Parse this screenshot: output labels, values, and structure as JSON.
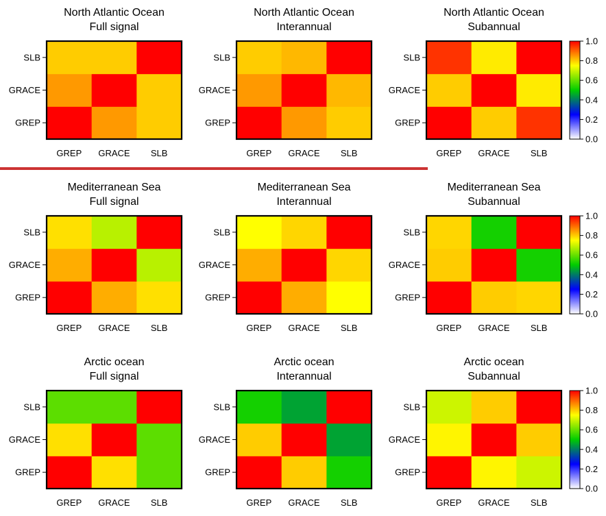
{
  "chart_data": [
    {
      "type": "heatmap",
      "title": "North Atlantic Ocean",
      "subtitle": "Full signal",
      "x_labels": [
        "GREP",
        "GRACE",
        "SLB"
      ],
      "y_labels": [
        "GREP",
        "GRACE",
        "SLB"
      ],
      "values": [
        [
          1.0,
          0.85,
          0.8
        ],
        [
          0.85,
          1.0,
          0.8
        ],
        [
          0.8,
          0.8,
          1.0
        ]
      ]
    },
    {
      "type": "heatmap",
      "title": "North Atlantic Ocean",
      "subtitle": "Interannual",
      "x_labels": [
        "GREP",
        "GRACE",
        "SLB"
      ],
      "y_labels": [
        "GREP",
        "GRACE",
        "SLB"
      ],
      "values": [
        [
          1.0,
          0.85,
          0.8
        ],
        [
          0.85,
          1.0,
          0.82
        ],
        [
          0.8,
          0.82,
          1.0
        ]
      ]
    },
    {
      "type": "heatmap",
      "title": "North Atlantic Ocean",
      "subtitle": "Subannual",
      "x_labels": [
        "GREP",
        "GRACE",
        "SLB"
      ],
      "y_labels": [
        "GREP",
        "GRACE",
        "SLB"
      ],
      "values": [
        [
          1.0,
          0.8,
          0.95
        ],
        [
          0.8,
          1.0,
          0.77
        ],
        [
          0.95,
          0.77,
          1.0
        ]
      ]
    },
    {
      "type": "heatmap",
      "title": "Mediterranean Sea",
      "subtitle": "Full signal",
      "x_labels": [
        "GREP",
        "GRACE",
        "SLB"
      ],
      "y_labels": [
        "GREP",
        "GRACE",
        "SLB"
      ],
      "values": [
        [
          1.0,
          0.83,
          0.78
        ],
        [
          0.83,
          1.0,
          0.68
        ],
        [
          0.78,
          0.68,
          1.0
        ]
      ]
    },
    {
      "type": "heatmap",
      "title": "Mediterranean Sea",
      "subtitle": "Interannual",
      "x_labels": [
        "GREP",
        "GRACE",
        "SLB"
      ],
      "y_labels": [
        "GREP",
        "GRACE",
        "SLB"
      ],
      "values": [
        [
          1.0,
          0.83,
          0.75
        ],
        [
          0.83,
          1.0,
          0.79
        ],
        [
          0.75,
          0.79,
          1.0
        ]
      ]
    },
    {
      "type": "heatmap",
      "title": "Mediterranean Sea",
      "subtitle": "Subannual",
      "x_labels": [
        "GREP",
        "GRACE",
        "SLB"
      ],
      "y_labels": [
        "GREP",
        "GRACE",
        "SLB"
      ],
      "values": [
        [
          1.0,
          0.8,
          0.79
        ],
        [
          0.8,
          1.0,
          0.52
        ],
        [
          0.79,
          0.52,
          1.0
        ]
      ]
    },
    {
      "type": "heatmap",
      "title": "Arctic ocean",
      "subtitle": "Full signal",
      "x_labels": [
        "GREP",
        "GRACE",
        "SLB"
      ],
      "y_labels": [
        "GREP",
        "GRACE",
        "SLB"
      ],
      "values": [
        [
          1.0,
          0.78,
          0.59
        ],
        [
          0.78,
          1.0,
          0.59
        ],
        [
          0.59,
          0.59,
          1.0
        ]
      ]
    },
    {
      "type": "heatmap",
      "title": "Arctic ocean",
      "subtitle": "Interannual",
      "x_labels": [
        "GREP",
        "GRACE",
        "SLB"
      ],
      "y_labels": [
        "GREP",
        "GRACE",
        "SLB"
      ],
      "values": [
        [
          1.0,
          0.8,
          0.52
        ],
        [
          0.8,
          1.0,
          0.45
        ],
        [
          0.52,
          0.45,
          1.0
        ]
      ]
    },
    {
      "type": "heatmap",
      "title": "Arctic ocean",
      "subtitle": "Subannual",
      "x_labels": [
        "GREP",
        "GRACE",
        "SLB"
      ],
      "y_labels": [
        "GREP",
        "GRACE",
        "SLB"
      ],
      "values": [
        [
          1.0,
          0.76,
          0.7
        ],
        [
          0.76,
          1.0,
          0.8
        ],
        [
          0.7,
          0.8,
          1.0
        ]
      ]
    }
  ],
  "colorbar": {
    "ticks": [
      "0.0",
      "0.2",
      "0.4",
      "0.6",
      "0.8",
      "1.0"
    ],
    "range": [
      0,
      1
    ],
    "stops": [
      "#ffffff",
      "#0000ff",
      "#00cc00",
      "#ffff00",
      "#ff0000"
    ]
  },
  "colors": {
    "divider": "#cc3333"
  }
}
